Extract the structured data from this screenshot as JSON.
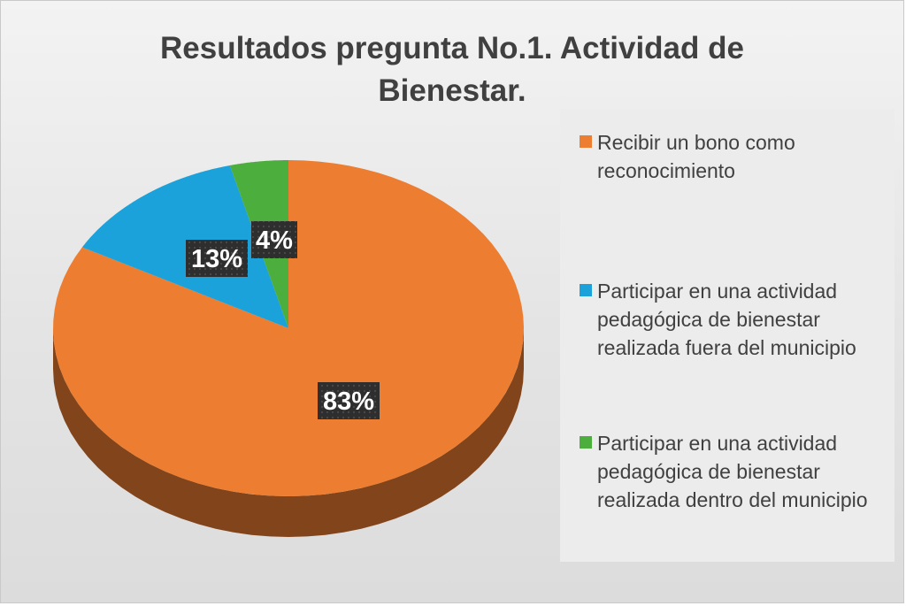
{
  "chart_data": {
    "type": "pie",
    "title": "Resultados pregunta No.1. Actividad de\nBienestar.",
    "categories": [
      "Recibir un bono como reconocimiento",
      "Participar en una actividad pedagógica de bienestar realizada fuera del municipio",
      "Participar en una actividad pedagógica de bienestar realizada dentro del municipio"
    ],
    "values": [
      83,
      13,
      4
    ],
    "value_labels": [
      "83%",
      "13%",
      "4%"
    ],
    "colors": [
      "#ED7D31",
      "#1BA2DA",
      "#4CAE3C"
    ],
    "legend_position": "right",
    "style": "3d"
  }
}
